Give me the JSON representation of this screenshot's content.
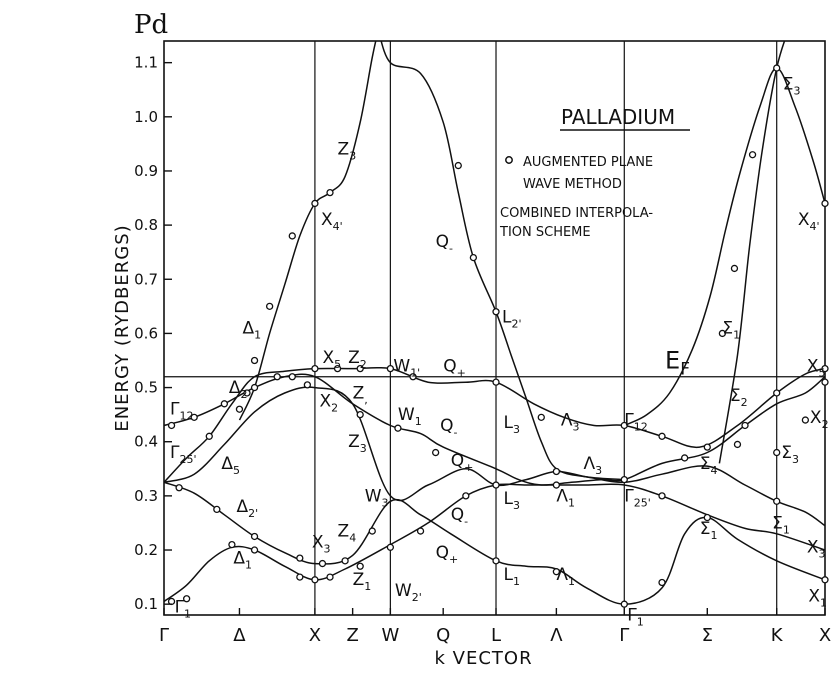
{
  "chart_data": {
    "type": "line",
    "title": "Pd",
    "inset_title": "PALLADIUM",
    "legend_items": [
      {
        "marker": "circle",
        "text_lines": [
          "AUGMENTED PLANE",
          "WAVE METHOD"
        ]
      },
      {
        "marker": "line",
        "text_lines": [
          "COMBINED INTERPOLA-",
          "TION SCHEME"
        ]
      }
    ],
    "xlabel": "k VECTOR",
    "ylabel": "ENERGY (RYDBERGS)",
    "ylim": [
      0.08,
      1.14
    ],
    "yticks": [
      "0.1",
      "0.2",
      "0.3",
      "0.4",
      "0.5",
      "0.6",
      "0.7",
      "0.8",
      "0.9",
      "1.0",
      "1.1"
    ],
    "ytick_values": [
      0.1,
      0.2,
      0.3,
      0.4,
      0.5,
      0.6,
      0.7,
      0.8,
      0.9,
      1.0,
      1.1
    ],
    "x_points": [
      {
        "label": "Γ",
        "x": 0
      },
      {
        "label": "Δ",
        "x": 0.5
      },
      {
        "label": "X",
        "x": 1
      },
      {
        "label": "Z",
        "x": 1.25
      },
      {
        "label": "W",
        "x": 1.5
      },
      {
        "label": "Q",
        "x": 1.85
      },
      {
        "label": "L",
        "x": 2.2
      },
      {
        "label": "Λ",
        "x": 2.6
      },
      {
        "label": "Γ",
        "x": 3.05
      },
      {
        "label": "Σ",
        "x": 3.6
      },
      {
        "label": "K",
        "x": 4.06
      },
      {
        "label": "X",
        "x": 4.38
      }
    ],
    "xlim": [
      0,
      4.38
    ],
    "vlines": [
      1,
      1.5,
      2.2,
      3.05,
      4.06
    ],
    "fermi_level": {
      "label": "EF",
      "energy": 0.52
    },
    "series": [
      {
        "points": [
          [
            0,
            0.105
          ],
          [
            0.15,
            0.135
          ],
          [
            0.3,
            0.18
          ],
          [
            0.45,
            0.205
          ],
          [
            0.6,
            0.2
          ],
          [
            0.8,
            0.17
          ],
          [
            1,
            0.145
          ],
          [
            1.2,
            0.165
          ],
          [
            1.5,
            0.21
          ],
          [
            1.75,
            0.25
          ],
          [
            2,
            0.3
          ],
          [
            2.2,
            0.32
          ],
          [
            2.4,
            0.32
          ],
          [
            2.6,
            0.32
          ],
          [
            2.8,
            0.32
          ],
          [
            3.05,
            0.32
          ],
          [
            3.3,
            0.3
          ],
          [
            3.6,
            0.265
          ],
          [
            3.85,
            0.24
          ],
          [
            4.06,
            0.23
          ],
          [
            4.38,
            0.2
          ]
        ]
      },
      {
        "points": [
          [
            0,
            0.325
          ],
          [
            0.2,
            0.305
          ],
          [
            0.4,
            0.265
          ],
          [
            0.6,
            0.225
          ],
          [
            0.8,
            0.195
          ],
          [
            1,
            0.175
          ],
          [
            1.25,
            0.19
          ],
          [
            1.5,
            0.29
          ],
          [
            1.7,
            0.265
          ],
          [
            1.9,
            0.23
          ],
          [
            2.2,
            0.18
          ],
          [
            2.4,
            0.17
          ],
          [
            2.6,
            0.165
          ],
          [
            2.8,
            0.13
          ],
          [
            3.05,
            0.1
          ],
          [
            3.3,
            0.13
          ],
          [
            3.45,
            0.23
          ],
          [
            3.6,
            0.26
          ],
          [
            3.8,
            0.22
          ],
          [
            4.06,
            0.18
          ],
          [
            4.38,
            0.145
          ]
        ]
      },
      {
        "points": [
          [
            0,
            0.325
          ],
          [
            0.2,
            0.34
          ],
          [
            0.4,
            0.395
          ],
          [
            0.6,
            0.455
          ],
          [
            0.8,
            0.49
          ],
          [
            1,
            0.5
          ],
          [
            1.25,
            0.47
          ],
          [
            1.5,
            0.3
          ],
          [
            1.75,
            0.32
          ],
          [
            2,
            0.35
          ],
          [
            2.2,
            0.32
          ],
          [
            2.4,
            0.33
          ],
          [
            2.6,
            0.345
          ],
          [
            2.8,
            0.335
          ],
          [
            3.05,
            0.325
          ],
          [
            3.3,
            0.34
          ],
          [
            3.6,
            0.355
          ],
          [
            3.85,
            0.32
          ],
          [
            4.06,
            0.29
          ],
          [
            4.25,
            0.27
          ],
          [
            4.38,
            0.245
          ]
        ]
      },
      {
        "points": [
          [
            0,
            0.325
          ],
          [
            0.15,
            0.37
          ],
          [
            0.3,
            0.41
          ],
          [
            0.45,
            0.47
          ],
          [
            0.6,
            0.52
          ],
          [
            0.8,
            0.53
          ],
          [
            1,
            0.535
          ],
          [
            1.25,
            0.535
          ],
          [
            1.5,
            0.535
          ],
          [
            1.75,
            0.51
          ],
          [
            2,
            0.51
          ],
          [
            2.2,
            0.51
          ],
          [
            2.45,
            0.47
          ],
          [
            2.65,
            0.445
          ],
          [
            2.85,
            0.43
          ],
          [
            3.05,
            0.43
          ],
          [
            3.3,
            0.41
          ],
          [
            3.55,
            0.39
          ],
          [
            3.8,
            0.43
          ],
          [
            4.06,
            0.49
          ],
          [
            4.25,
            0.525
          ],
          [
            4.38,
            0.535
          ]
        ]
      },
      {
        "points": [
          [
            0,
            0.43
          ],
          [
            0.2,
            0.445
          ],
          [
            0.4,
            0.47
          ],
          [
            0.6,
            0.5
          ],
          [
            0.8,
            0.52
          ],
          [
            1,
            0.52
          ],
          [
            1.25,
            0.47
          ],
          [
            1.5,
            0.43
          ],
          [
            1.7,
            0.415
          ],
          [
            1.85,
            0.39
          ],
          [
            2.2,
            0.35
          ],
          [
            2.35,
            0.33
          ],
          [
            2.5,
            0.32
          ],
          [
            2.7,
            0.325
          ],
          [
            2.9,
            0.33
          ],
          [
            3.05,
            0.33
          ],
          [
            3.3,
            0.36
          ],
          [
            3.6,
            0.38
          ],
          [
            3.85,
            0.43
          ],
          [
            4.06,
            0.47
          ],
          [
            4.25,
            0.49
          ],
          [
            4.38,
            0.52
          ]
        ]
      },
      {
        "points": [
          [
            0.5,
            0.44
          ],
          [
            0.6,
            0.5
          ],
          [
            0.7,
            0.6
          ],
          [
            0.8,
            0.69
          ],
          [
            0.9,
            0.78
          ],
          [
            1,
            0.84
          ],
          [
            1.1,
            0.86
          ],
          [
            1.2,
            0.89
          ],
          [
            1.3,
            0.99
          ],
          [
            1.38,
            1.11
          ],
          [
            1.42,
            1.16
          ]
        ]
      },
      {
        "points": [
          [
            1.42,
            1.16
          ],
          [
            1.5,
            1.1
          ],
          [
            1.7,
            1.08
          ],
          [
            1.85,
            0.99
          ],
          [
            1.95,
            0.86
          ],
          [
            2.05,
            0.74
          ],
          [
            2.2,
            0.64
          ],
          [
            2.3,
            0.56
          ],
          [
            2.4,
            0.48
          ],
          [
            2.5,
            0.4
          ],
          [
            2.6,
            0.35
          ],
          [
            2.8,
            0.335
          ],
          [
            3.05,
            0.33
          ]
        ]
      },
      {
        "points": [
          [
            3.05,
            0.43
          ],
          [
            3.2,
            0.45
          ],
          [
            3.35,
            0.49
          ],
          [
            3.5,
            0.57
          ],
          [
            3.62,
            0.67
          ],
          [
            3.72,
            0.79
          ],
          [
            3.82,
            0.9
          ],
          [
            3.95,
            1.02
          ],
          [
            4.06,
            1.09
          ],
          [
            4.18,
            1.02
          ],
          [
            4.3,
            0.92
          ],
          [
            4.38,
            0.84
          ]
        ]
      },
      {
        "points": [
          [
            3.68,
            0.36
          ],
          [
            3.8,
            0.56
          ],
          [
            3.88,
            0.76
          ],
          [
            3.96,
            0.93
          ],
          [
            4.06,
            1.09
          ],
          [
            4.15,
            1.17
          ]
        ]
      }
    ],
    "apw_points": [
      [
        0.05,
        0.105
      ],
      [
        0.15,
        0.11
      ],
      [
        0.45,
        0.21
      ],
      [
        0.6,
        0.2
      ],
      [
        0.9,
        0.15
      ],
      [
        1,
        0.145
      ],
      [
        1.1,
        0.15
      ],
      [
        1.3,
        0.17
      ],
      [
        1.5,
        0.205
      ],
      [
        2.2,
        0.18
      ],
      [
        2.6,
        0.16
      ],
      [
        3.05,
        0.1
      ],
      [
        3.3,
        0.14
      ],
      [
        3.6,
        0.26
      ],
      [
        4.38,
        0.145
      ],
      [
        0.1,
        0.315
      ],
      [
        0.35,
        0.275
      ],
      [
        0.6,
        0.225
      ],
      [
        0.9,
        0.185
      ],
      [
        1.05,
        0.175
      ],
      [
        1.2,
        0.18
      ],
      [
        1.38,
        0.235
      ],
      [
        1.7,
        0.235
      ],
      [
        2.0,
        0.3
      ],
      [
        2.2,
        0.32
      ],
      [
        2.6,
        0.32
      ],
      [
        3.3,
        0.3
      ],
      [
        4.06,
        0.29
      ],
      [
        0.05,
        0.43
      ],
      [
        0.2,
        0.445
      ],
      [
        0.4,
        0.47
      ],
      [
        0.6,
        0.5
      ],
      [
        0.85,
        0.52
      ],
      [
        1,
        0.535
      ],
      [
        1.15,
        0.535
      ],
      [
        1.3,
        0.535
      ],
      [
        1.5,
        0.535
      ],
      [
        1.65,
        0.52
      ],
      [
        2.2,
        0.51
      ],
      [
        2.5,
        0.445
      ],
      [
        3.05,
        0.43
      ],
      [
        3.3,
        0.41
      ],
      [
        3.6,
        0.39
      ],
      [
        3.85,
        0.43
      ],
      [
        4.06,
        0.49
      ],
      [
        4.38,
        0.535
      ],
      [
        0.3,
        0.41
      ],
      [
        0.55,
        0.49
      ],
      [
        0.75,
        0.52
      ],
      [
        0.95,
        0.505
      ],
      [
        1.3,
        0.45
      ],
      [
        1.55,
        0.425
      ],
      [
        1.8,
        0.38
      ],
      [
        2.6,
        0.345
      ],
      [
        3.05,
        0.33
      ],
      [
        3.45,
        0.37
      ],
      [
        3.8,
        0.395
      ],
      [
        4.06,
        0.38
      ],
      [
        4.25,
        0.44
      ],
      [
        4.38,
        0.51
      ],
      [
        0.5,
        0.46
      ],
      [
        0.6,
        0.55
      ],
      [
        0.7,
        0.65
      ],
      [
        0.85,
        0.78
      ],
      [
        1,
        0.84
      ],
      [
        1.1,
        0.86
      ],
      [
        1.95,
        0.91
      ],
      [
        2.05,
        0.74
      ],
      [
        2.2,
        0.64
      ],
      [
        3.7,
        0.6
      ],
      [
        3.78,
        0.72
      ],
      [
        3.9,
        0.93
      ],
      [
        4.06,
        1.09
      ],
      [
        4.38,
        0.84
      ]
    ],
    "annotations": [
      {
        "text": "Γ",
        "sub": "12",
        "x": 0.04,
        "y": 0.45
      },
      {
        "text": "Γ",
        "sub": "25'",
        "x": 0.04,
        "y": 0.37
      },
      {
        "text": "Γ",
        "sub": "1",
        "x": 0.07,
        "y": 0.085
      },
      {
        "text": "Δ",
        "sub": "2",
        "x": 0.43,
        "y": 0.49
      },
      {
        "text": "Δ",
        "sub": "5",
        "x": 0.38,
        "y": 0.35
      },
      {
        "text": "Δ",
        "sub": "2'",
        "x": 0.48,
        "y": 0.27
      },
      {
        "text": "Δ",
        "sub": "1",
        "x": 0.46,
        "y": 0.175
      },
      {
        "text": "Δ",
        "sub": "1",
        "x": 0.52,
        "y": 0.6
      },
      {
        "text": "X",
        "sub": "4'",
        "x": 1.04,
        "y": 0.8
      },
      {
        "text": "X",
        "sub": "5",
        "x": 1.05,
        "y": 0.545
      },
      {
        "text": "X",
        "sub": "2",
        "x": 1.03,
        "y": 0.465
      },
      {
        "text": "X",
        "sub": "3",
        "x": 0.98,
        "y": 0.205
      },
      {
        "text": "Z",
        "sub": "3",
        "x": 1.15,
        "y": 0.93
      },
      {
        "text": "Z",
        "sub": "2",
        "x": 1.22,
        "y": 0.545
      },
      {
        "text": "Z",
        "sub": ",",
        "x": 1.25,
        "y": 0.48
      },
      {
        "text": "Z",
        "sub": "3",
        "x": 1.22,
        "y": 0.39
      },
      {
        "text": "Z",
        "sub": "4",
        "x": 1.15,
        "y": 0.225
      },
      {
        "text": "Z",
        "sub": "1",
        "x": 1.25,
        "y": 0.135
      },
      {
        "text": "W",
        "sub": "1'",
        "x": 1.52,
        "y": 0.53
      },
      {
        "text": "W",
        "sub": "1",
        "x": 1.55,
        "y": 0.44
      },
      {
        "text": "W",
        "sub": "3",
        "x": 1.33,
        "y": 0.29
      },
      {
        "text": "W",
        "sub": "2'",
        "x": 1.53,
        "y": 0.115
      },
      {
        "text": "Q",
        "sub": "+",
        "x": 1.85,
        "y": 0.53
      },
      {
        "text": "Q",
        "sub": "-",
        "x": 1.83,
        "y": 0.42
      },
      {
        "text": "Q",
        "sub": "+",
        "x": 1.9,
        "y": 0.355
      },
      {
        "text": "Q",
        "sub": "-",
        "x": 1.9,
        "y": 0.255
      },
      {
        "text": "Q",
        "sub": "+",
        "x": 1.8,
        "y": 0.185
      },
      {
        "text": "Q",
        "sub": "-",
        "x": 1.8,
        "y": 0.76
      },
      {
        "text": "L",
        "sub": "2'",
        "x": 2.24,
        "y": 0.62
      },
      {
        "text": "L",
        "sub": "3",
        "x": 2.25,
        "y": 0.425
      },
      {
        "text": "L",
        "sub": "3",
        "x": 2.25,
        "y": 0.285
      },
      {
        "text": "L",
        "sub": "1",
        "x": 2.25,
        "y": 0.145
      },
      {
        "text": "Λ",
        "sub": "3",
        "x": 2.63,
        "y": 0.43
      },
      {
        "text": "Λ",
        "sub": "3",
        "x": 2.78,
        "y": 0.35
      },
      {
        "text": "Λ",
        "sub": "1",
        "x": 2.6,
        "y": 0.29
      },
      {
        "text": "Λ",
        "sub": "1",
        "x": 2.6,
        "y": 0.145
      },
      {
        "text": "Γ",
        "sub": "12",
        "x": 3.05,
        "y": 0.43
      },
      {
        "text": "Γ",
        "sub": "25'",
        "x": 3.05,
        "y": 0.29
      },
      {
        "text": "Γ",
        "sub": "1",
        "x": 3.07,
        "y": 0.07
      },
      {
        "text": "Σ",
        "sub": "1",
        "x": 3.7,
        "y": 0.6
      },
      {
        "text": "Σ",
        "sub": "2",
        "x": 3.75,
        "y": 0.475
      },
      {
        "text": "Σ",
        "sub": "4",
        "x": 3.55,
        "y": 0.35
      },
      {
        "text": "Σ",
        "sub": "1",
        "x": 3.55,
        "y": 0.23
      },
      {
        "text": "Σ",
        "sub": "3",
        "x": 4.1,
        "y": 1.05
      },
      {
        "text": "Σ",
        "sub": "3",
        "x": 4.09,
        "y": 0.37
      },
      {
        "text": "Σ",
        "sub": "1",
        "x": 4.03,
        "y": 0.24
      },
      {
        "text": "X",
        "sub": "4'",
        "x": 4.2,
        "y": 0.8
      },
      {
        "text": "X",
        "sub": "5",
        "x": 4.26,
        "y": 0.53
      },
      {
        "text": "X",
        "sub": "2",
        "x": 4.28,
        "y": 0.435
      },
      {
        "text": "X",
        "sub": "3",
        "x": 4.26,
        "y": 0.195
      },
      {
        "text": "X",
        "sub": "1",
        "x": 4.27,
        "y": 0.105
      }
    ]
  }
}
